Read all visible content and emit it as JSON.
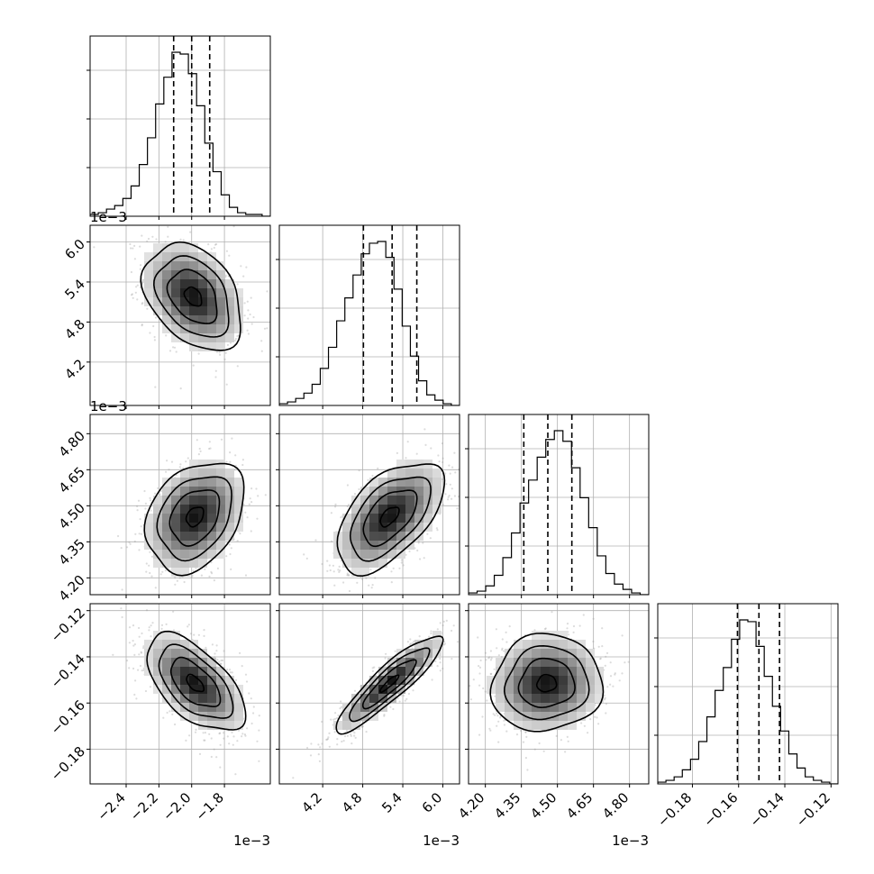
{
  "figure": {
    "type": "corner-plot"
  },
  "colors": {
    "hist": "#000000",
    "grid": "#b0b0b0",
    "points": "#9a9a9a",
    "contour": "#000000",
    "frame": "#000000"
  },
  "chart_data": {
    "type": "corner",
    "grid": true,
    "params": [
      {
        "range": [
          -0.00262,
          -0.00152
        ],
        "ticks": [
          -0.0024,
          -0.0022,
          -0.002,
          -0.0018
        ],
        "tick_labels": [
          "−2.4",
          "−2.2",
          "−2.0",
          "−1.8"
        ],
        "offset_label": "1e−3",
        "quantiles": [
          -0.00211,
          -0.002,
          -0.00189
        ],
        "hist": [
          1,
          2,
          4,
          6,
          10,
          17,
          29,
          44,
          63,
          78,
          92,
          91,
          80,
          62,
          41,
          25,
          12,
          5,
          2,
          1,
          1,
          0
        ]
      },
      {
        "range": [
          0.00355,
          0.00625
        ],
        "ticks": [
          0.0042,
          0.0048,
          0.0054,
          0.006
        ],
        "tick_labels": [
          "4.2",
          "4.8",
          "5.4",
          "6.0"
        ],
        "offset_label": "1e−3",
        "quantiles": [
          0.00481,
          0.00524,
          0.00561
        ],
        "hist": [
          1,
          2,
          4,
          7,
          12,
          21,
          33,
          48,
          61,
          74,
          86,
          92,
          93,
          84,
          66,
          45,
          28,
          14,
          6,
          3,
          1,
          0
        ]
      },
      {
        "range": [
          0.00413,
          0.00488
        ],
        "ticks": [
          0.0042,
          0.00435,
          0.0045,
          0.00465,
          0.0048
        ],
        "tick_labels": [
          "4.20",
          "4.35",
          "4.50",
          "4.65",
          "4.80"
        ],
        "offset_label": "1e−3",
        "quantiles": [
          0.00436,
          0.00446,
          0.00456
        ],
        "hist": [
          1,
          2,
          5,
          11,
          21,
          35,
          52,
          65,
          78,
          88,
          93,
          87,
          72,
          55,
          38,
          22,
          12,
          6,
          3,
          1,
          0
        ]
      },
      {
        "range": [
          -0.195,
          -0.117
        ],
        "ticks": [
          -0.18,
          -0.16,
          -0.14,
          -0.12
        ],
        "tick_labels": [
          "−0.18",
          "−0.16",
          "−0.14",
          "−0.12"
        ],
        "offset_label": "",
        "quantiles": [
          -0.1605,
          -0.1512,
          -0.1423
        ],
        "hist": [
          1,
          2,
          4,
          8,
          14,
          24,
          38,
          53,
          66,
          82,
          93,
          92,
          78,
          61,
          44,
          30,
          17,
          9,
          4,
          2,
          1,
          0
        ]
      }
    ],
    "pairs": [
      {
        "x": 0,
        "y": 1,
        "mean": [
          -0.00199,
          0.00518
        ],
        "sd": [
          0.00015,
          0.0004
        ],
        "rho": -0.35
      },
      {
        "x": 0,
        "y": 2,
        "mean": [
          -0.00198,
          0.004455
        ],
        "sd": [
          0.00015,
          0.000115
        ],
        "rho": 0.3
      },
      {
        "x": 1,
        "y": 2,
        "mean": [
          0.0052,
          0.004455
        ],
        "sd": [
          0.0004,
          0.000115
        ],
        "rho": 0.55
      },
      {
        "x": 0,
        "y": 3,
        "mean": [
          -0.00198,
          -0.1515
        ],
        "sd": [
          0.00015,
          0.0105
        ],
        "rho": -0.58
      },
      {
        "x": 1,
        "y": 3,
        "mean": [
          0.0052,
          -0.1515
        ],
        "sd": [
          0.0004,
          0.0105
        ],
        "rho": 0.9
      },
      {
        "x": 2,
        "y": 3,
        "mean": [
          0.004455,
          -0.1515
        ],
        "sd": [
          0.000115,
          0.0105
        ],
        "rho": 0.05
      }
    ]
  }
}
